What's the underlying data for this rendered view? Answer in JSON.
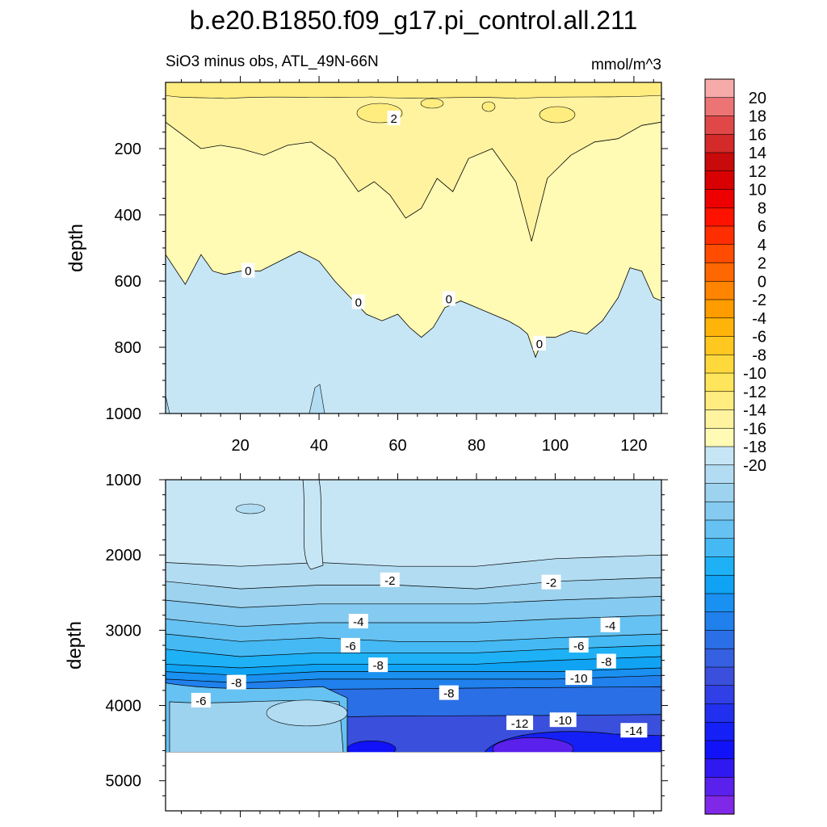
{
  "title": "b.e20.B1850.f09_g17.pi_control.all.211",
  "subtitle_left": "SiO3 minus obs, ATL_49N-66N",
  "units": "mmol/m^3",
  "colors": {
    "positive": [
      "#fffab4",
      "#fff3a0",
      "#ffed80",
      "#ffe55c",
      "#ffd93c",
      "#ffc820",
      "#ffb40a",
      "#ff9c00",
      "#ff8400",
      "#ff6800",
      "#ff4c00",
      "#ff2e00",
      "#ff1200",
      "#ef0000",
      "#d80000",
      "#c80a0a",
      "#d42a2a",
      "#e04848",
      "#ec7474",
      "#f7aaaa"
    ],
    "negative": [
      "#c7e6f5",
      "#b2dcf2",
      "#9dd3ef",
      "#85caf0",
      "#66c2f2",
      "#45b9f4",
      "#1eb1f5",
      "#10a3f3",
      "#1a90f0",
      "#2080ec",
      "#2b6fe6",
      "#3660e2",
      "#3a4fdc",
      "#3140e6",
      "#2030ee",
      "#1420f5",
      "#1212f8",
      "#3018f0",
      "#5a20ec",
      "#8028e8"
    ]
  },
  "chart_data": [
    {
      "type": "heatmap",
      "panel": "upper",
      "ylabel": "depth",
      "xlim": [
        1,
        127
      ],
      "ylim": [
        1000,
        0
      ],
      "x_ticks": [
        "20",
        "40",
        "60",
        "80",
        "100",
        "120"
      ],
      "y_ticks": [
        "200",
        "400",
        "600",
        "800",
        "1000"
      ],
      "zero_contour_depth": [
        {
          "x": 1,
          "y": 520
        },
        {
          "x": 6,
          "y": 610
        },
        {
          "x": 10,
          "y": 520
        },
        {
          "x": 13,
          "y": 570
        },
        {
          "x": 16,
          "y": 580
        },
        {
          "x": 20,
          "y": 570
        },
        {
          "x": 25,
          "y": 570
        },
        {
          "x": 30,
          "y": 540
        },
        {
          "x": 35,
          "y": 510
        },
        {
          "x": 40,
          "y": 540
        },
        {
          "x": 44,
          "y": 600
        },
        {
          "x": 48,
          "y": 650
        },
        {
          "x": 52,
          "y": 700
        },
        {
          "x": 56,
          "y": 720
        },
        {
          "x": 60,
          "y": 700
        },
        {
          "x": 63,
          "y": 740
        },
        {
          "x": 66,
          "y": 770
        },
        {
          "x": 69,
          "y": 740
        },
        {
          "x": 72,
          "y": 680
        },
        {
          "x": 76,
          "y": 660
        },
        {
          "x": 80,
          "y": 680
        },
        {
          "x": 84,
          "y": 700
        },
        {
          "x": 88,
          "y": 720
        },
        {
          "x": 91,
          "y": 740
        },
        {
          "x": 93,
          "y": 760
        },
        {
          "x": 95,
          "y": 830
        },
        {
          "x": 97,
          "y": 770
        },
        {
          "x": 100,
          "y": 770
        },
        {
          "x": 104,
          "y": 750
        },
        {
          "x": 108,
          "y": 760
        },
        {
          "x": 112,
          "y": 720
        },
        {
          "x": 116,
          "y": 650
        },
        {
          "x": 119,
          "y": 560
        },
        {
          "x": 122,
          "y": 570
        },
        {
          "x": 125,
          "y": 650
        },
        {
          "x": 127,
          "y": 660
        }
      ],
      "two_contour_depth": [
        {
          "x": 1,
          "y": 120
        },
        {
          "x": 10,
          "y": 200
        },
        {
          "x": 15,
          "y": 190
        },
        {
          "x": 20,
          "y": 200
        },
        {
          "x": 26,
          "y": 220
        },
        {
          "x": 32,
          "y": 190
        },
        {
          "x": 38,
          "y": 180
        },
        {
          "x": 44,
          "y": 230
        },
        {
          "x": 50,
          "y": 330
        },
        {
          "x": 54,
          "y": 300
        },
        {
          "x": 58,
          "y": 340
        },
        {
          "x": 62,
          "y": 410
        },
        {
          "x": 66,
          "y": 380
        },
        {
          "x": 70,
          "y": 290
        },
        {
          "x": 74,
          "y": 330
        },
        {
          "x": 78,
          "y": 230
        },
        {
          "x": 84,
          "y": 200
        },
        {
          "x": 90,
          "y": 300
        },
        {
          "x": 94,
          "y": 480
        },
        {
          "x": 98,
          "y": 290
        },
        {
          "x": 104,
          "y": 220
        },
        {
          "x": 110,
          "y": 180
        },
        {
          "x": 116,
          "y": 170
        },
        {
          "x": 122,
          "y": 130
        },
        {
          "x": 127,
          "y": 120
        }
      ],
      "contour_labels": [
        {
          "text": "2",
          "x": 59,
          "y": 110
        },
        {
          "text": "0",
          "x": 22,
          "y": 570
        },
        {
          "text": "0",
          "x": 50,
          "y": 665
        },
        {
          "text": "0",
          "x": 73,
          "y": 655
        },
        {
          "text": "0",
          "x": 96,
          "y": 790
        }
      ]
    },
    {
      "type": "heatmap",
      "panel": "lower",
      "ylabel": "depth",
      "xlim": [
        1,
        127
      ],
      "ylim": [
        5400,
        1000
      ],
      "data_bottom_depth": 4620,
      "y_ticks": [
        "1000",
        "2000",
        "3000",
        "4000",
        "5000"
      ],
      "levels": [
        0,
        -1,
        -2,
        -3,
        -4,
        -5,
        -6,
        -7,
        -8,
        -9,
        -10,
        -11,
        -12
      ],
      "layer_depths": [
        {
          "level": -1,
          "depths": [
            2100,
            2150,
            2100,
            2150,
            2150,
            2050,
            2000
          ]
        },
        {
          "level": -2,
          "depths": [
            2350,
            2450,
            2400,
            2400,
            2450,
            2350,
            2300
          ]
        },
        {
          "level": -3,
          "depths": [
            2600,
            2700,
            2650,
            2650,
            2650,
            2600,
            2550
          ]
        },
        {
          "level": -4,
          "depths": [
            2850,
            2950,
            2900,
            2900,
            2900,
            2850,
            2800
          ]
        },
        {
          "level": -5,
          "depths": [
            3050,
            3150,
            3100,
            3150,
            3150,
            3100,
            3050
          ]
        },
        {
          "level": -6,
          "depths": [
            3250,
            3350,
            3300,
            3300,
            3300,
            3250,
            3200
          ]
        },
        {
          "level": -7,
          "depths": [
            3450,
            3500,
            3450,
            3450,
            3450,
            3400,
            3350
          ]
        },
        {
          "level": -8,
          "depths": [
            3550,
            3600,
            3550,
            3550,
            3550,
            3550,
            3500
          ]
        },
        {
          "level": -9,
          "depths": [
            3650,
            3700,
            3650,
            3650,
            3650,
            3650,
            3600
          ]
        }
      ],
      "layer_x": [
        1,
        20,
        40,
        60,
        80,
        100,
        127
      ],
      "bottom_features": [
        {
          "x0": 1,
          "x1": 47,
          "value": -3,
          "description_level": "-6 to -2"
        },
        {
          "x0": 47,
          "x1": 127,
          "value": -12
        },
        {
          "x0": 84,
          "x1": 112,
          "value": -17
        }
      ],
      "contour_labels": [
        {
          "text": "-2",
          "x": 58,
          "y": 2340
        },
        {
          "text": "-2",
          "x": 99,
          "y": 2370
        },
        {
          "text": "-4",
          "x": 50,
          "y": 2890
        },
        {
          "text": "-4",
          "x": 114,
          "y": 2940
        },
        {
          "text": "-6",
          "x": 48,
          "y": 3210
        },
        {
          "text": "-6",
          "x": 106,
          "y": 3210
        },
        {
          "text": "-8",
          "x": 55,
          "y": 3470
        },
        {
          "text": "-8",
          "x": 113,
          "y": 3420
        },
        {
          "text": "-8",
          "x": 19,
          "y": 3700
        },
        {
          "text": "-6",
          "x": 10,
          "y": 3940
        },
        {
          "text": "-10",
          "x": 106,
          "y": 3640
        },
        {
          "text": "-8",
          "x": 73,
          "y": 3840
        },
        {
          "text": "-12",
          "x": 91,
          "y": 4240
        },
        {
          "text": "-10",
          "x": 102,
          "y": 4200
        },
        {
          "text": "-14",
          "x": 120,
          "y": 4340
        }
      ]
    }
  ],
  "colorbar": {
    "labels": [
      "20",
      "18",
      "16",
      "14",
      "12",
      "10",
      "8",
      "6",
      "4",
      "2",
      "0",
      "-2",
      "-4",
      "-6",
      "-8",
      "-10",
      "-12",
      "-14",
      "-16",
      "-18",
      "-20"
    ]
  }
}
